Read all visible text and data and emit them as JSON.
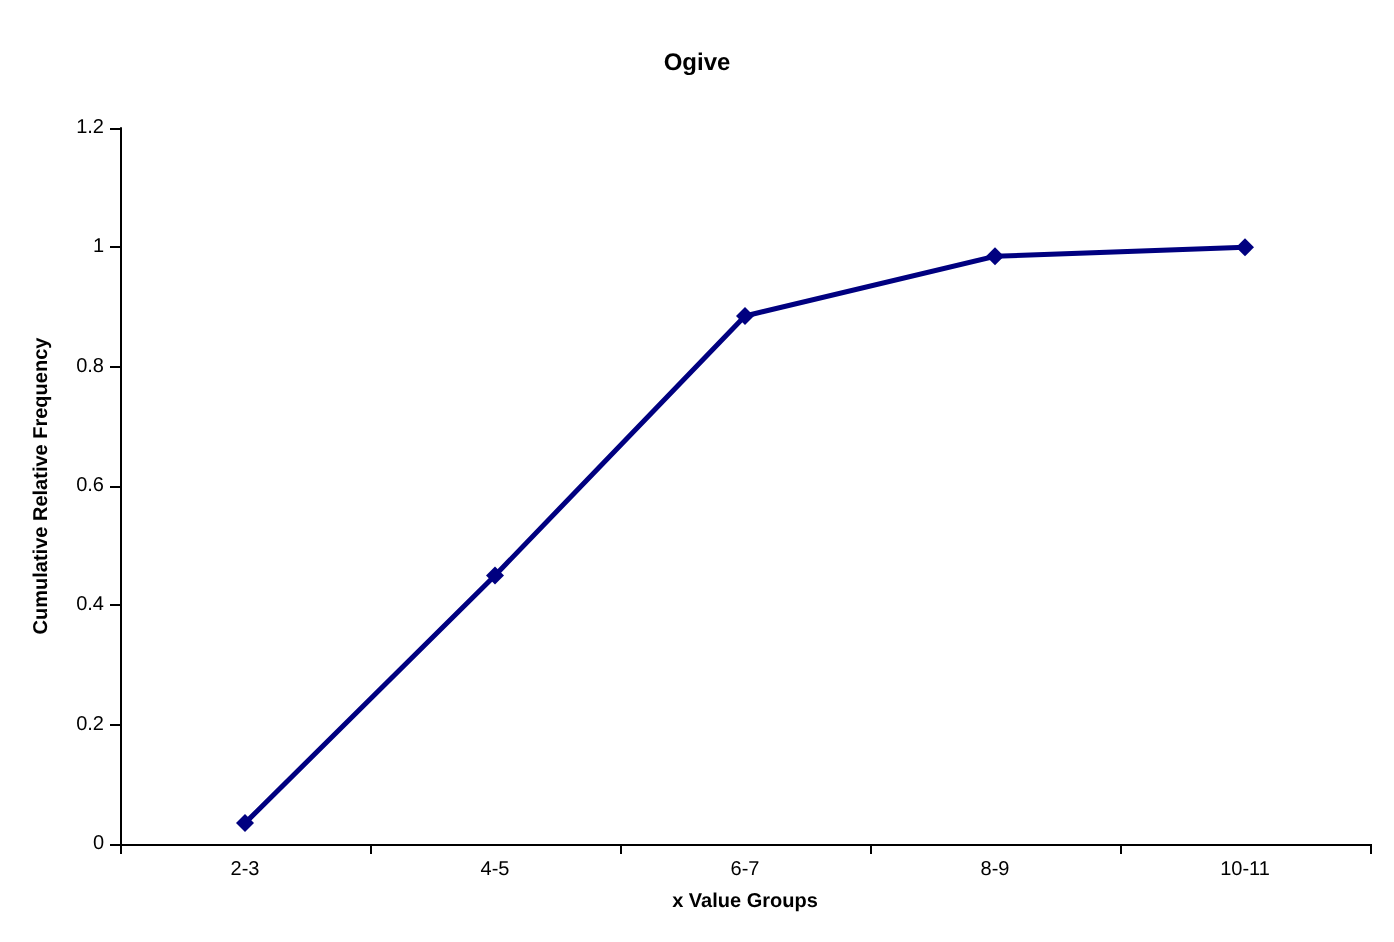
{
  "chart_data": {
    "type": "line",
    "title": "Ogive",
    "xlabel": "x Value Groups",
    "ylabel": "Cumulative Relative Frequency",
    "categories": [
      "2-3",
      "4-5",
      "6-7",
      "8-9",
      "10-11"
    ],
    "series": [
      {
        "color": "#000080",
        "values": [
          0.035,
          0.45,
          0.885,
          0.985,
          1
        ]
      }
    ],
    "ylim": [
      0,
      1.2
    ],
    "yticks": [
      0,
      0.2,
      0.4,
      0.6,
      0.8,
      1,
      1.2
    ],
    "grid": false,
    "marker": "diamond",
    "line_style": "solid"
  }
}
